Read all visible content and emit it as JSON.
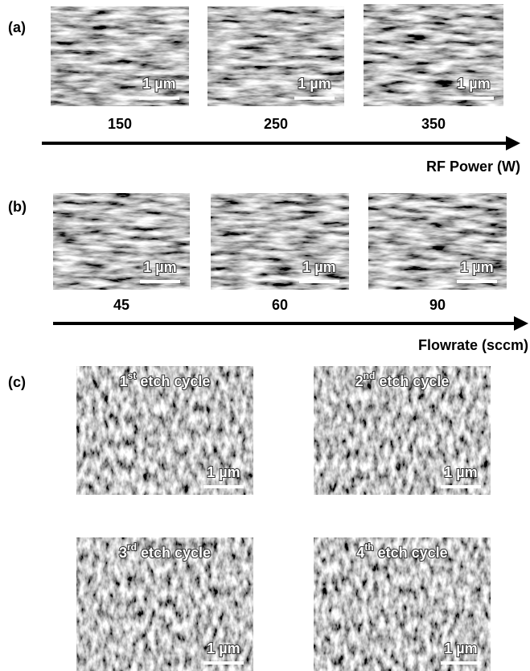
{
  "panel_a": {
    "label": "(a)",
    "images": [
      {
        "scale_bar": "1 µm",
        "caption": 150
      },
      {
        "scale_bar": "1 µm",
        "caption": 250
      },
      {
        "scale_bar": "1 µm",
        "caption": 350
      }
    ],
    "axis_title": "RF Power (W)"
  },
  "panel_b": {
    "label": "(b)",
    "images": [
      {
        "scale_bar": "1 µm",
        "caption": 45
      },
      {
        "scale_bar": "1 µm",
        "caption": 60
      },
      {
        "scale_bar": "1 µm",
        "caption": 90
      }
    ],
    "axis_title": "Flowrate (sccm)"
  },
  "panel_c": {
    "label": "(c)",
    "images": [
      {
        "title": {
          "number": "1",
          "suffix": "st",
          "text": "etch cycle"
        },
        "scale_bar": "1 µm"
      },
      {
        "title": {
          "number": "2",
          "suffix": "nd",
          "text": "etch cycle"
        },
        "scale_bar": "1 µm"
      },
      {
        "title": {
          "number": "3",
          "suffix": "rd",
          "text": "etch cycle"
        },
        "scale_bar": "1 µm"
      },
      {
        "title": {
          "number": "4",
          "suffix": "th",
          "text": "etch cycle"
        },
        "scale_bar": "1 µm"
      }
    ]
  }
}
